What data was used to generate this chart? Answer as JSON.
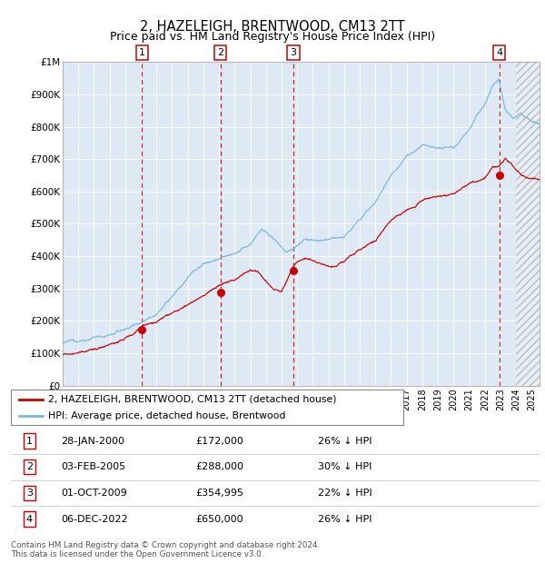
{
  "title": "2, HAZELEIGH, BRENTWOOD, CM13 2TT",
  "subtitle": "Price paid vs. HM Land Registry's House Price Index (HPI)",
  "title_fontsize": 10.5,
  "subtitle_fontsize": 9,
  "hpi_color": "#7ab8d9",
  "price_color": "#cc0000",
  "bg_color": "#ddeaf5",
  "vline_color": "#cc0000",
  "ylim": [
    0,
    1000000
  ],
  "yticks": [
    0,
    100000,
    200000,
    300000,
    400000,
    500000,
    600000,
    700000,
    800000,
    900000,
    1000000
  ],
  "ytick_labels": [
    "£0",
    "£100K",
    "£200K",
    "£300K",
    "£400K",
    "£500K",
    "£600K",
    "£700K",
    "£800K",
    "£900K",
    "£1M"
  ],
  "xlim_start": 1995.0,
  "xlim_end": 2025.5,
  "hatch_start": 2024.0,
  "transactions": [
    {
      "num": 1,
      "date": "28-JAN-2000",
      "year": 2000.08,
      "price": 172000
    },
    {
      "num": 2,
      "date": "03-FEB-2005",
      "year": 2005.09,
      "price": 288000
    },
    {
      "num": 3,
      "date": "01-OCT-2009",
      "year": 2009.75,
      "price": 354995
    },
    {
      "num": 4,
      "date": "06-DEC-2022",
      "year": 2022.92,
      "price": 650000
    }
  ],
  "legend_label_price": "2, HAZELEIGH, BRENTWOOD, CM13 2TT (detached house)",
  "legend_label_hpi": "HPI: Average price, detached house, Brentwood",
  "footer": "Contains HM Land Registry data © Crown copyright and database right 2024.\nThis data is licensed under the Open Government Licence v3.0.",
  "table_rows": [
    [
      "1",
      "28-JAN-2000",
      "£172,000",
      "26% ↓ HPI"
    ],
    [
      "2",
      "03-FEB-2005",
      "£288,000",
      "30% ↓ HPI"
    ],
    [
      "3",
      "01-OCT-2009",
      "£354,995",
      "22% ↓ HPI"
    ],
    [
      "4",
      "06-DEC-2022",
      "£650,000",
      "26% ↓ HPI"
    ]
  ],
  "fig_width": 6.0,
  "fig_height": 6.2,
  "dpi": 100
}
